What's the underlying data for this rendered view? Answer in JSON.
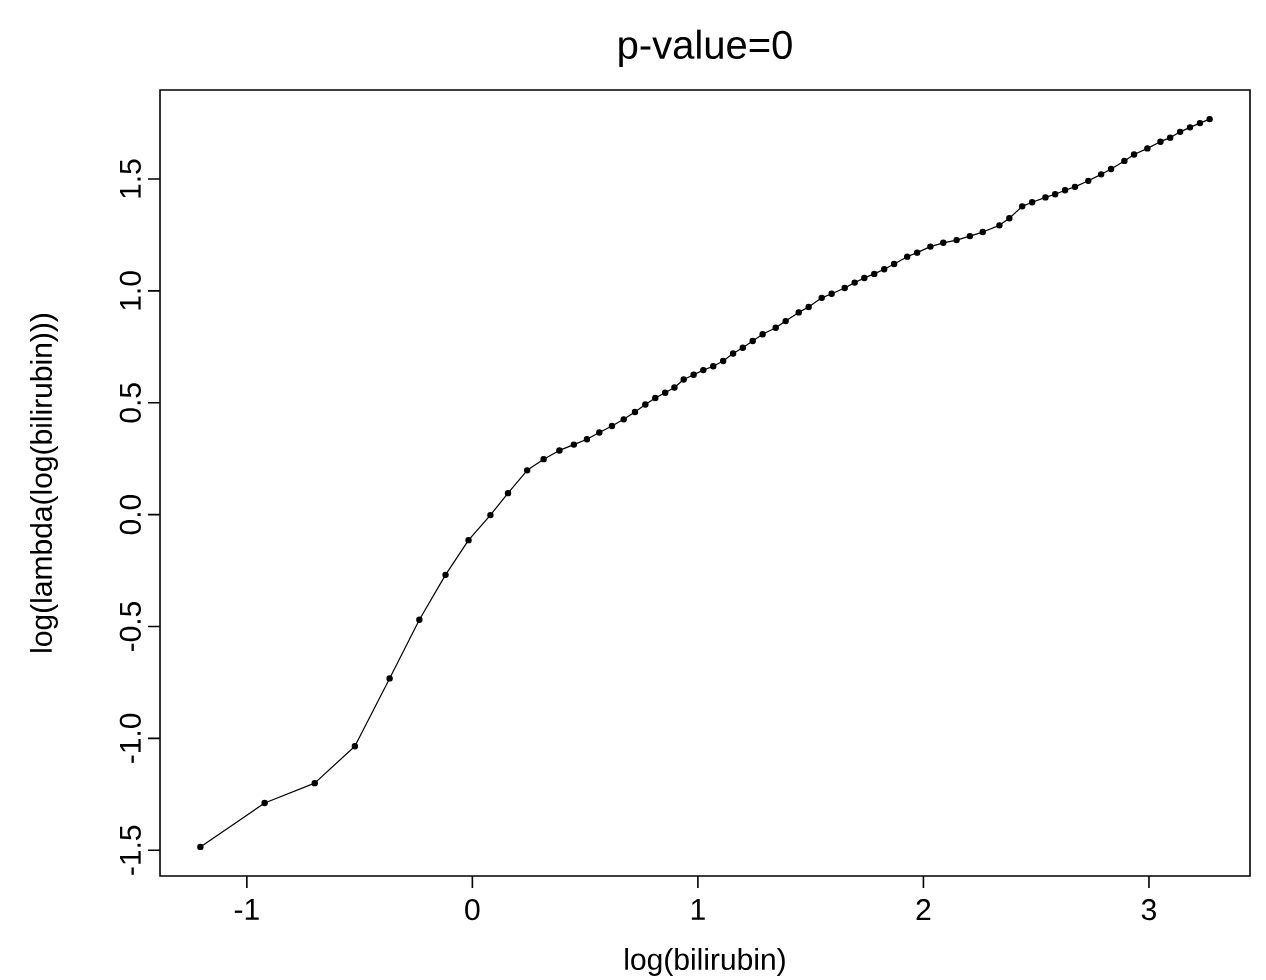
{
  "chart_data": {
    "type": "line",
    "title": "p-value=0",
    "xlabel": "log(bilirubin)",
    "ylabel": "log(lambda(log(bilirubin)))",
    "x": [
      -1.206,
      -0.921,
      -0.699,
      -0.521,
      -0.367,
      -0.235,
      -0.119,
      -0.017,
      0.08,
      0.158,
      0.243,
      0.316,
      0.386,
      0.45,
      0.508,
      0.563,
      0.619,
      0.671,
      0.721,
      0.767,
      0.811,
      0.855,
      0.896,
      0.937,
      0.981,
      1.024,
      1.068,
      1.112,
      1.156,
      1.199,
      1.243,
      1.287,
      1.345,
      1.389,
      1.447,
      1.491,
      1.549,
      1.593,
      1.651,
      1.695,
      1.738,
      1.782,
      1.826,
      1.87,
      1.928,
      1.972,
      2.031,
      2.088,
      2.147,
      2.206,
      2.263,
      2.337,
      2.381,
      2.438,
      2.482,
      2.541,
      2.584,
      2.628,
      2.672,
      2.731,
      2.788,
      2.832,
      2.891,
      2.934,
      2.993,
      3.051,
      3.094,
      3.138,
      3.182,
      3.226,
      3.269
    ],
    "values": [
      -1.485,
      -1.289,
      -1.2,
      -1.035,
      -0.732,
      -0.47,
      -0.269,
      -0.114,
      -0.002,
      0.096,
      0.198,
      0.248,
      0.287,
      0.313,
      0.337,
      0.367,
      0.396,
      0.426,
      0.459,
      0.492,
      0.521,
      0.545,
      0.568,
      0.604,
      0.625,
      0.646,
      0.663,
      0.687,
      0.72,
      0.746,
      0.776,
      0.806,
      0.835,
      0.865,
      0.904,
      0.928,
      0.969,
      0.987,
      1.013,
      1.037,
      1.058,
      1.076,
      1.097,
      1.12,
      1.153,
      1.171,
      1.198,
      1.215,
      1.227,
      1.245,
      1.263,
      1.293,
      1.325,
      1.378,
      1.396,
      1.418,
      1.432,
      1.45,
      1.465,
      1.492,
      1.521,
      1.545,
      1.581,
      1.61,
      1.637,
      1.667,
      1.685,
      1.711,
      1.731,
      1.75,
      1.768
    ],
    "color": "#000000",
    "marker": "circle",
    "line_style": "solid",
    "xlim": [
      -1.385,
      3.448
    ],
    "ylim": [
      -1.615,
      1.898
    ],
    "xticks": [
      -1,
      0,
      1,
      2,
      3
    ],
    "yticks": [
      {
        "value": -1.5,
        "label": "-1.5"
      },
      {
        "value": -1.0,
        "label": "-1.0"
      },
      {
        "value": -0.5,
        "label": "-0.5"
      },
      {
        "value": 0.0,
        "label": "0.0"
      },
      {
        "value": 0.5,
        "label": "0.5"
      },
      {
        "value": 1.0,
        "label": "1.0"
      },
      {
        "value": 1.5,
        "label": "1.5"
      }
    ]
  }
}
